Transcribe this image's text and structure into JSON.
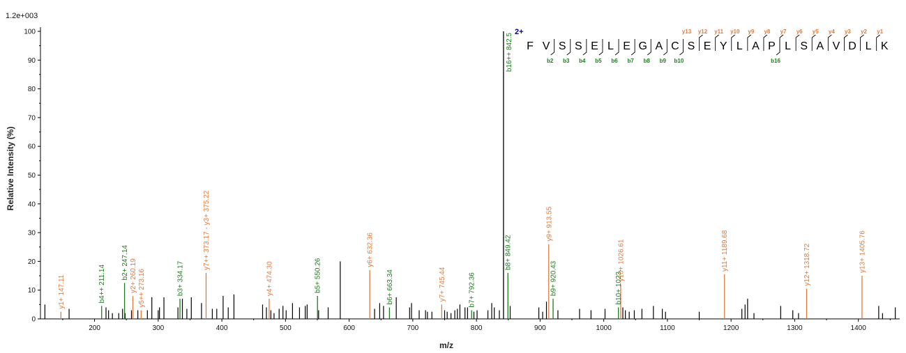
{
  "chart_data": {
    "type": "bar",
    "intensity_scale_label": "1.2e+003",
    "xlabel": "m/z",
    "ylabel": "Relative  Intensity (%)",
    "xlim": [
      115,
      1465
    ],
    "ylim": [
      0,
      100
    ],
    "x_ticks": [
      200,
      300,
      400,
      500,
      600,
      700,
      800,
      900,
      1000,
      1100,
      1200,
      1300,
      1400
    ],
    "y_ticks": [
      0,
      10,
      20,
      30,
      40,
      50,
      60,
      70,
      80,
      90,
      100
    ],
    "colors": {
      "b_ion": "#1e7a1e",
      "y_ion": "#e07a3c",
      "unassigned": "#000000",
      "charge": "#00008b",
      "axis": "#000000"
    },
    "unassigned_peaks": [
      [
        122,
        5
      ],
      [
        160,
        3.5
      ],
      [
        218,
        4
      ],
      [
        222,
        3
      ],
      [
        228,
        2
      ],
      [
        238,
        2
      ],
      [
        244,
        3.5
      ],
      [
        248,
        2
      ],
      [
        258,
        3
      ],
      [
        268,
        3
      ],
      [
        283,
        3
      ],
      [
        290,
        7.5
      ],
      [
        300,
        3
      ],
      [
        302,
        4
      ],
      [
        309,
        7.5
      ],
      [
        331,
        4
      ],
      [
        338,
        7
      ],
      [
        345,
        3.5
      ],
      [
        352,
        7.5
      ],
      [
        368,
        5.5
      ],
      [
        385,
        3.5
      ],
      [
        392,
        3.5
      ],
      [
        402,
        8
      ],
      [
        410,
        4
      ],
      [
        419,
        8.5
      ],
      [
        464,
        5
      ],
      [
        470,
        4
      ],
      [
        477,
        3
      ],
      [
        482,
        2
      ],
      [
        490,
        3.5
      ],
      [
        496,
        4.5
      ],
      [
        501,
        3
      ],
      [
        511,
        5.5
      ],
      [
        522,
        4
      ],
      [
        531,
        4.5
      ],
      [
        534,
        5
      ],
      [
        552,
        3
      ],
      [
        567,
        4
      ],
      [
        586,
        20
      ],
      [
        640,
        3.5
      ],
      [
        648,
        5.5
      ],
      [
        654,
        4.5
      ],
      [
        674,
        7.5
      ],
      [
        695,
        4
      ],
      [
        698,
        5.5
      ],
      [
        710,
        3
      ],
      [
        720,
        3
      ],
      [
        723,
        2.5
      ],
      [
        730,
        2.5
      ],
      [
        750,
        3
      ],
      [
        754,
        2.5
      ],
      [
        760,
        2
      ],
      [
        766,
        3
      ],
      [
        770,
        3.5
      ],
      [
        774,
        5
      ],
      [
        782,
        4
      ],
      [
        786,
        4
      ],
      [
        796,
        2.5
      ],
      [
        801,
        3
      ],
      [
        818,
        3
      ],
      [
        824,
        5.5
      ],
      [
        828,
        4
      ],
      [
        836,
        3
      ],
      [
        853,
        4.5
      ],
      [
        898,
        4
      ],
      [
        904,
        2.5
      ],
      [
        910,
        6
      ],
      [
        928,
        3
      ],
      [
        962,
        3.5
      ],
      [
        980,
        3
      ],
      [
        1002,
        3.5
      ],
      [
        1030,
        4
      ],
      [
        1034,
        3
      ],
      [
        1040,
        2.5
      ],
      [
        1048,
        3
      ],
      [
        1060,
        3.5
      ],
      [
        1078,
        4.5
      ],
      [
        1092,
        3.5
      ],
      [
        1097,
        2.5
      ],
      [
        1150,
        2.5
      ],
      [
        1217,
        3.5
      ],
      [
        1222,
        5
      ],
      [
        1226,
        7
      ],
      [
        1236,
        2
      ],
      [
        1278,
        4.5
      ],
      [
        1297,
        3
      ],
      [
        1306,
        2
      ],
      [
        1432,
        4.5
      ],
      [
        1438,
        2
      ],
      [
        1458,
        4
      ]
    ],
    "precursor_peak": {
      "mz": 842.5,
      "intensity": 100,
      "label": "b16++ 842.5"
    },
    "labeled_peaks": [
      {
        "mz": 211.14,
        "intensity": 4.5,
        "ion": "b",
        "label": "b4++ 211.14"
      },
      {
        "mz": 247.14,
        "intensity": 12.5,
        "ion": "b",
        "label": "b2+ 247.14"
      },
      {
        "mz": 334.17,
        "intensity": 7,
        "ion": "b",
        "label": "b3+ 334.17"
      },
      {
        "mz": 550.26,
        "intensity": 8,
        "ion": "b",
        "label": "b5+ 550.26"
      },
      {
        "mz": 663.34,
        "intensity": 4,
        "ion": "b",
        "label": "b6+ 663.34"
      },
      {
        "mz": 792.36,
        "intensity": 3,
        "ion": "b",
        "label": "b7+ 792.36"
      },
      {
        "mz": 849.42,
        "intensity": 16,
        "ion": "b",
        "label": "b8+ 849.42"
      },
      {
        "mz": 920.43,
        "intensity": 7,
        "ion": "b",
        "label": "b9+ 920.43"
      },
      {
        "mz": 1023,
        "intensity": 4,
        "ion": "b",
        "label": "b10+ 1023."
      },
      {
        "mz": 147.11,
        "intensity": 2.5,
        "ion": "y",
        "label": "y1+ 147.11"
      },
      {
        "mz": 260.19,
        "intensity": 8,
        "ion": "y",
        "label": "y2+ 260.19"
      },
      {
        "mz": 273.16,
        "intensity": 3,
        "ion": "y",
        "label": "y5++ 273.16"
      },
      {
        "mz": 375.22,
        "intensity": 16,
        "ion": "y",
        "label": "y7++ 373.17 - y3+ 375.22"
      },
      {
        "mz": 474.3,
        "intensity": 7,
        "ion": "y",
        "label": "y4+ 474.30"
      },
      {
        "mz": 632.36,
        "intensity": 17,
        "ion": "y",
        "label": "y6+ 632.36"
      },
      {
        "mz": 745.44,
        "intensity": 5,
        "ion": "y",
        "label": "y7+ 745.44"
      },
      {
        "mz": 913.55,
        "intensity": 26,
        "ion": "y",
        "label": "y9+ 913.55"
      },
      {
        "mz": 1026.61,
        "intensity": 12,
        "ion": "y",
        "label": "y10+ 1026.61"
      },
      {
        "mz": 1189.68,
        "intensity": 15.5,
        "ion": "y",
        "label": "y11+ 1189.68"
      },
      {
        "mz": 1318.72,
        "intensity": 10.5,
        "ion": "y",
        "label": "y12+ 1318.72"
      },
      {
        "mz": 1405.76,
        "intensity": 15,
        "ion": "y",
        "label": "y13+ 1405.76"
      }
    ],
    "sequence": {
      "charge_label": "2+",
      "residues": [
        "F",
        "V",
        "S",
        "S",
        "E",
        "L",
        "E",
        "G",
        "A",
        "C",
        "S",
        "E",
        "Y",
        "L",
        "A",
        "P",
        "L",
        "S",
        "A",
        "V",
        "D",
        "L",
        "K"
      ],
      "b_ions": [
        {
          "after": 2,
          "label": "b2"
        },
        {
          "after": 3,
          "label": "b3"
        },
        {
          "after": 4,
          "label": "b4"
        },
        {
          "after": 5,
          "label": "b5"
        },
        {
          "after": 6,
          "label": "b6"
        },
        {
          "after": 7,
          "label": "b7"
        },
        {
          "after": 8,
          "label": "b8"
        },
        {
          "after": 9,
          "label": "b9"
        },
        {
          "after": 10,
          "label": "b10"
        },
        {
          "after": 16,
          "label": "b16"
        }
      ],
      "y_ions": [
        {
          "after": 11,
          "label": "y12"
        },
        {
          "after": 12,
          "label": "y11"
        },
        {
          "after": 13,
          "label": "y10"
        },
        {
          "after": 14,
          "label": "y9"
        },
        {
          "after": 15,
          "label": "y8"
        },
        {
          "after": 16,
          "label": "y7"
        },
        {
          "after": 17,
          "label": "y6"
        },
        {
          "after": 18,
          "label": "y5"
        },
        {
          "after": 19,
          "label": "y4"
        },
        {
          "after": 20,
          "label": "y3"
        },
        {
          "after": 21,
          "label": "y2"
        },
        {
          "after": 22,
          "label": "y1"
        }
      ],
      "y_ion_top_label": "y13"
    }
  }
}
